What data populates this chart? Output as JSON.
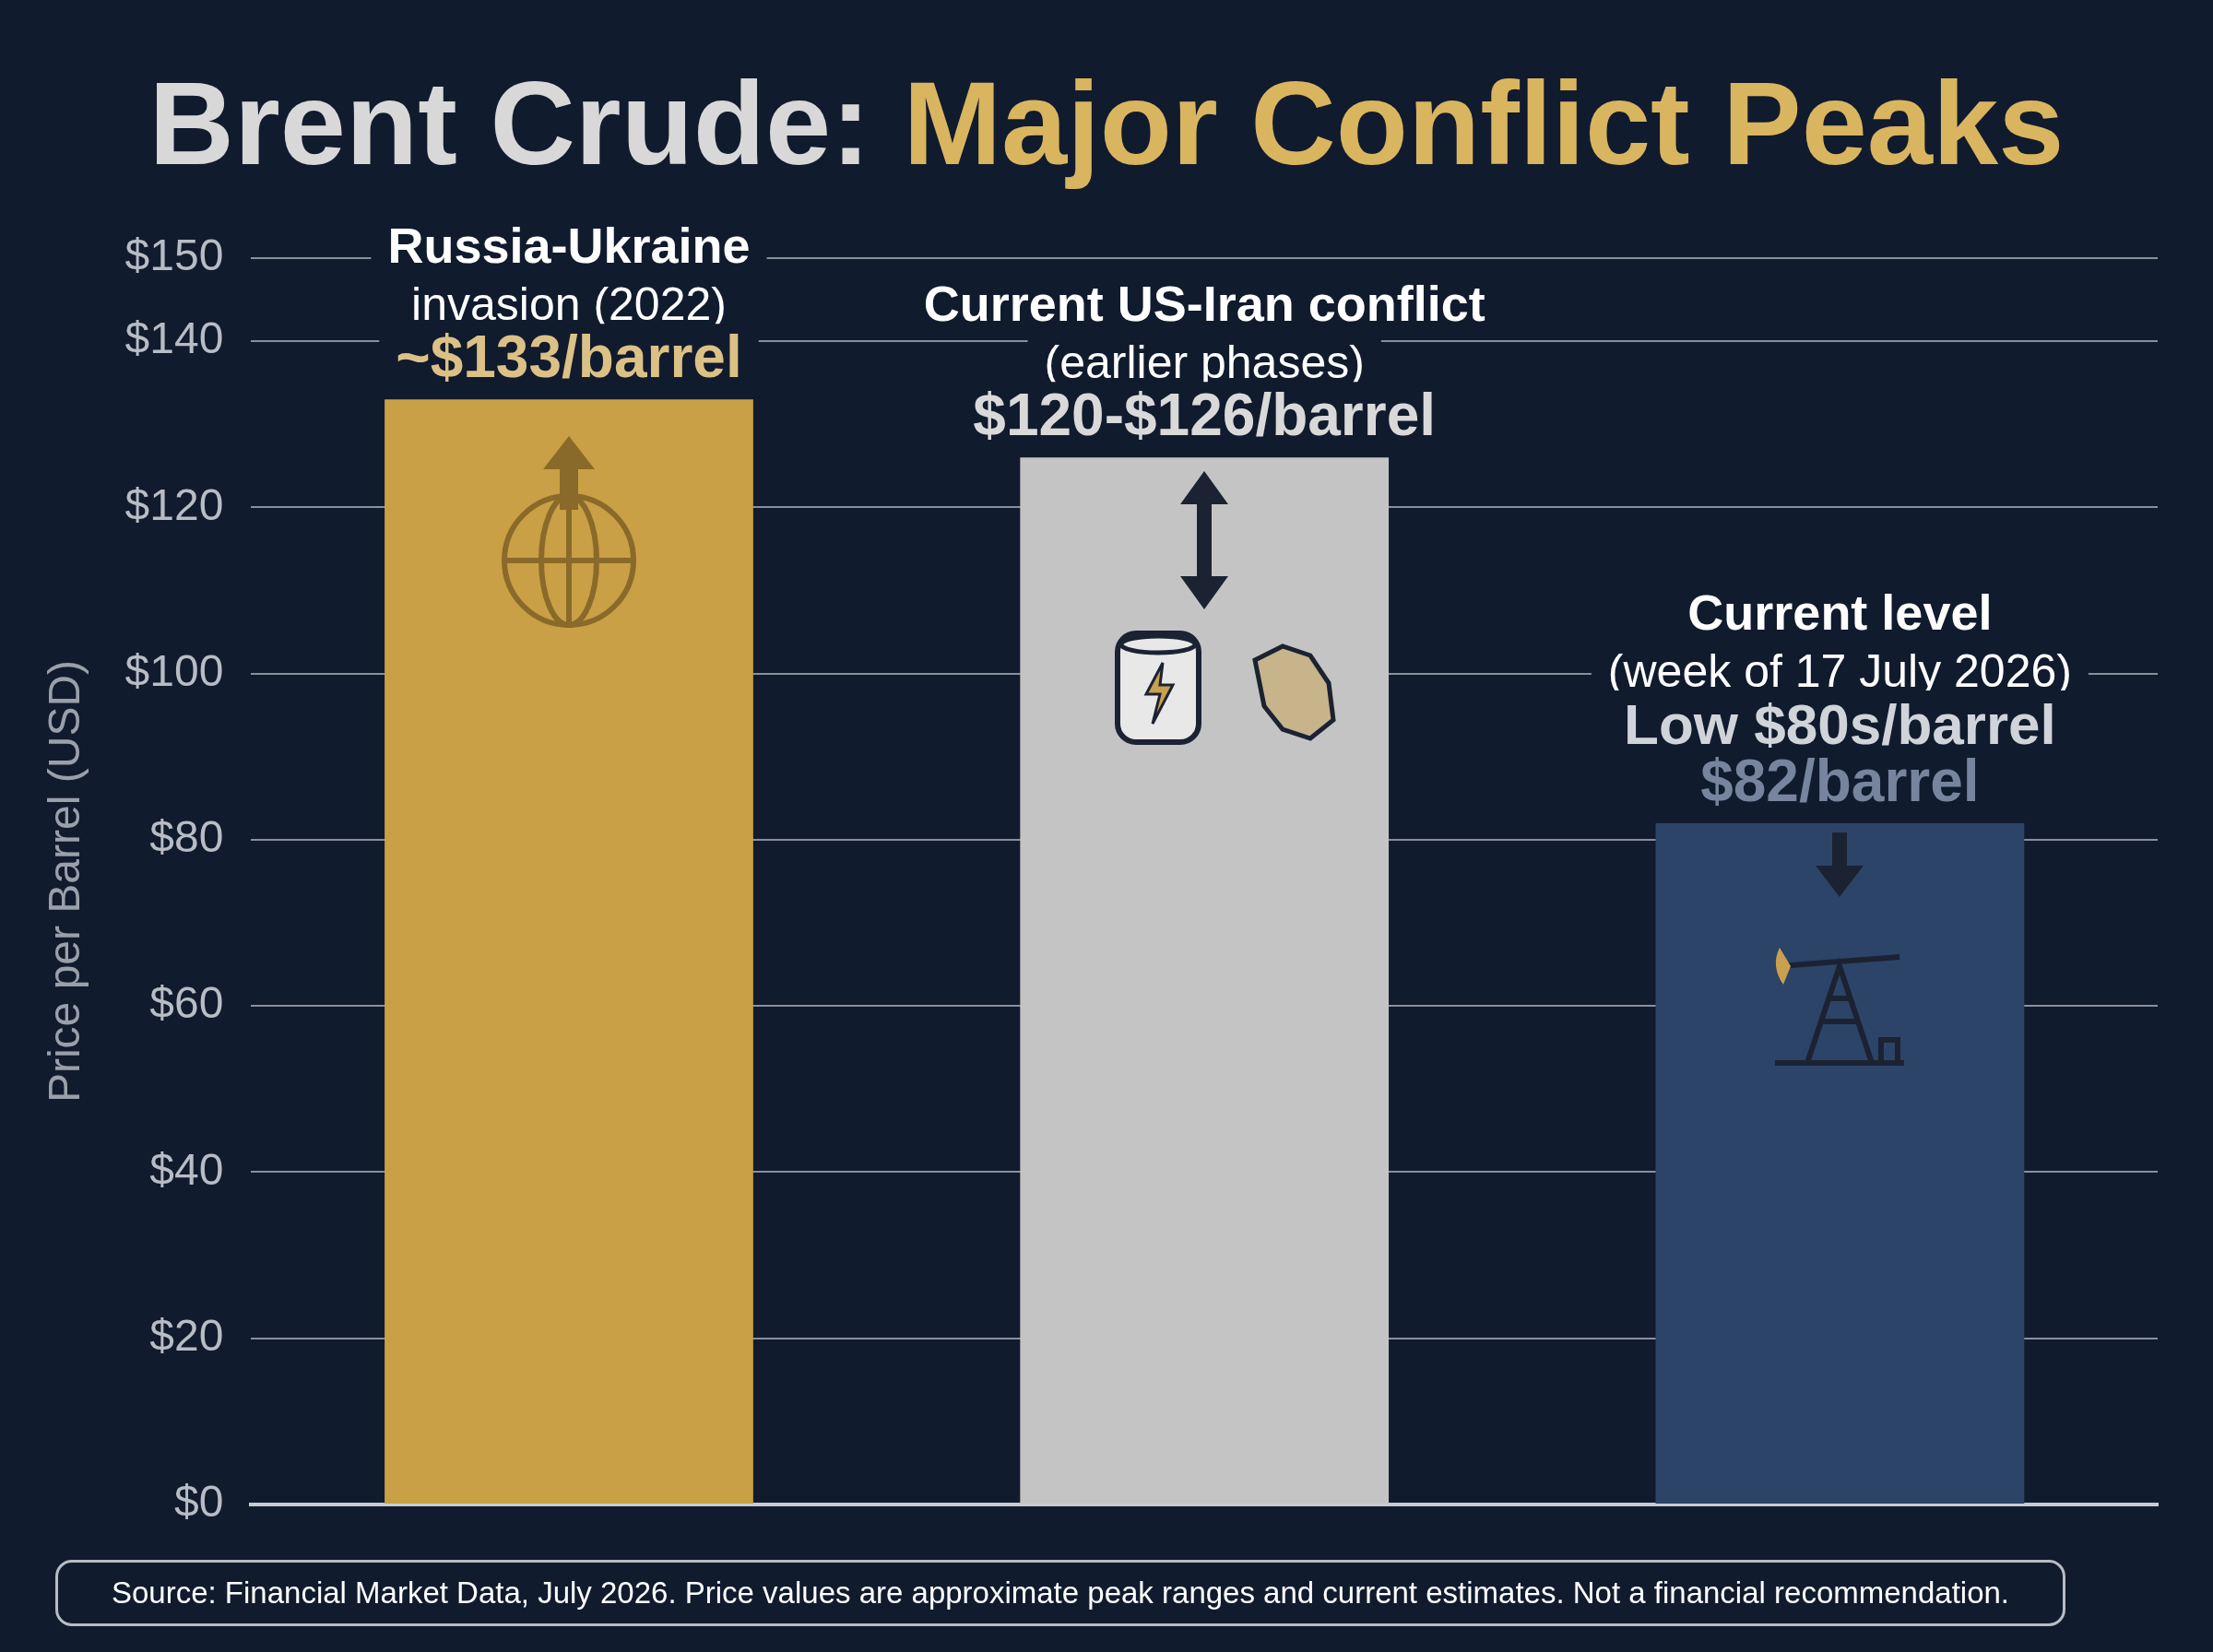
{
  "chart_data": {
    "type": "bar",
    "title": "Brent Crude: Major Conflict Peaks",
    "ylabel": "Price per Barrel (USD)",
    "categories": [
      null,
      null,
      null
    ],
    "values": [
      133,
      126,
      82
    ],
    "colors": [
      "#c9a045",
      "#c4c4c4",
      "#2c4468"
    ],
    "value_labels": [
      "~$133/barrel",
      "$120-$126/barrel",
      "$82/barrel"
    ],
    "ylim": [
      0,
      150
    ],
    "yticks": [
      {
        "value": 0,
        "label": "$0"
      },
      {
        "value": 20,
        "label": "$20"
      },
      {
        "value": 40,
        "label": "$40"
      },
      {
        "value": 60,
        "label": "$60"
      },
      {
        "value": 80,
        "label": "$80"
      },
      {
        "value": 100,
        "label": "$100"
      },
      {
        "value": 120,
        "label": "$120"
      },
      {
        "value": 140,
        "label": "$140"
      },
      {
        "value": 150,
        "label": "$150"
      }
    ],
    "grid": "y",
    "legend": false,
    "tick_labels": "y",
    "annotations": [
      "Russia-Ukraine\ninvasion (2022)",
      "Current US-Iran conflict\n(earlier phases)",
      "Current level\n(week of 17 July 2026)\nLow $80s/barrel",
      "Source: Financial Market Data, July 2026. Price values are approximate peak ranges and current estimates. Not a financial recommendation."
    ]
  }
}
